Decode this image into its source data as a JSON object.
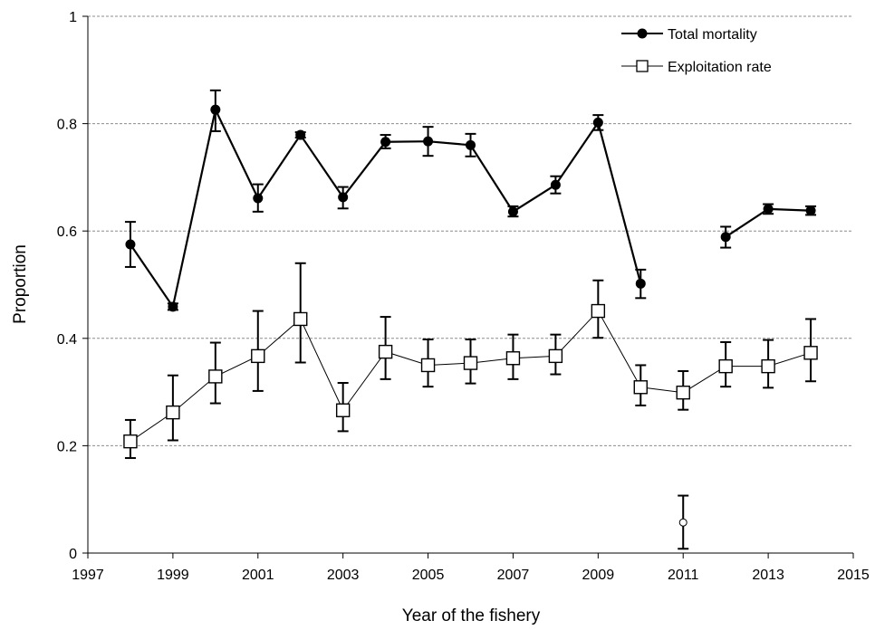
{
  "chart_data": {
    "type": "line",
    "xlabel": "Year of the fishery",
    "ylabel": "Proportion",
    "xlim": [
      1997,
      2015
    ],
    "ylim": [
      0,
      1
    ],
    "x_ticks": [
      "1997",
      "1999",
      "2001",
      "2003",
      "2005",
      "2007",
      "2009",
      "2011",
      "2013",
      "2015"
    ],
    "y_ticks": [
      "0",
      "0.2",
      "0.4",
      "0.6",
      "0.8",
      "1"
    ],
    "grid": "horizontal dashed",
    "legend_position": "top-right",
    "series": [
      {
        "name": "Total mortality",
        "marker": "filled-circle",
        "color": "#000000",
        "segments": [
          [
            {
              "x": 1998,
              "y": 0.575,
              "lo": 0.533,
              "hi": 0.617
            },
            {
              "x": 1999,
              "y": 0.459,
              "lo": 0.453,
              "hi": 0.465
            },
            {
              "x": 2000,
              "y": 0.826,
              "lo": 0.786,
              "hi": 0.862
            },
            {
              "x": 2001,
              "y": 0.661,
              "lo": 0.636,
              "hi": 0.687
            },
            {
              "x": 2002,
              "y": 0.779,
              "lo": 0.774,
              "hi": 0.784
            },
            {
              "x": 2003,
              "y": 0.663,
              "lo": 0.642,
              "hi": 0.682
            },
            {
              "x": 2004,
              "y": 0.766,
              "lo": 0.754,
              "hi": 0.779
            },
            {
              "x": 2005,
              "y": 0.767,
              "lo": 0.74,
              "hi": 0.794
            },
            {
              "x": 2006,
              "y": 0.76,
              "lo": 0.739,
              "hi": 0.781
            },
            {
              "x": 2007,
              "y": 0.636,
              "lo": 0.627,
              "hi": 0.646
            },
            {
              "x": 2008,
              "y": 0.686,
              "lo": 0.67,
              "hi": 0.702
            },
            {
              "x": 2009,
              "y": 0.802,
              "lo": 0.788,
              "hi": 0.816
            },
            {
              "x": 2010,
              "y": 0.502,
              "lo": 0.475,
              "hi": 0.528
            }
          ],
          [
            {
              "x": 2012,
              "y": 0.589,
              "lo": 0.569,
              "hi": 0.608
            },
            {
              "x": 2013,
              "y": 0.641,
              "lo": 0.632,
              "hi": 0.65
            },
            {
              "x": 2014,
              "y": 0.638,
              "lo": 0.63,
              "hi": 0.646
            }
          ]
        ]
      },
      {
        "name": "Exploitation rate",
        "marker": "open-square",
        "color": "#000000",
        "segments": [
          [
            {
              "x": 1998,
              "y": 0.208,
              "lo": 0.177,
              "hi": 0.248
            },
            {
              "x": 1999,
              "y": 0.262,
              "lo": 0.21,
              "hi": 0.331
            },
            {
              "x": 2000,
              "y": 0.329,
              "lo": 0.279,
              "hi": 0.392
            },
            {
              "x": 2001,
              "y": 0.367,
              "lo": 0.302,
              "hi": 0.451
            },
            {
              "x": 2002,
              "y": 0.436,
              "lo": 0.355,
              "hi": 0.54
            },
            {
              "x": 2003,
              "y": 0.266,
              "lo": 0.227,
              "hi": 0.317
            },
            {
              "x": 2004,
              "y": 0.375,
              "lo": 0.324,
              "hi": 0.44
            },
            {
              "x": 2005,
              "y": 0.35,
              "lo": 0.31,
              "hi": 0.398
            },
            {
              "x": 2006,
              "y": 0.354,
              "lo": 0.316,
              "hi": 0.398
            },
            {
              "x": 2007,
              "y": 0.363,
              "lo": 0.324,
              "hi": 0.407
            },
            {
              "x": 2008,
              "y": 0.367,
              "lo": 0.333,
              "hi": 0.407
            },
            {
              "x": 2009,
              "y": 0.451,
              "lo": 0.401,
              "hi": 0.508
            },
            {
              "x": 2010,
              "y": 0.309,
              "lo": 0.275,
              "hi": 0.35
            },
            {
              "x": 2011,
              "y": 0.299,
              "lo": 0.267,
              "hi": 0.339
            },
            {
              "x": 2012,
              "y": 0.348,
              "lo": 0.31,
              "hi": 0.393
            },
            {
              "x": 2013,
              "y": 0.348,
              "lo": 0.308,
              "hi": 0.397
            },
            {
              "x": 2014,
              "y": 0.373,
              "lo": 0.32,
              "hi": 0.436
            }
          ]
        ]
      }
    ],
    "extra_points": [
      {
        "x": 2011,
        "y": 0.057,
        "lo": 0.008,
        "hi": 0.107,
        "marker": "small-open-circle"
      }
    ]
  }
}
